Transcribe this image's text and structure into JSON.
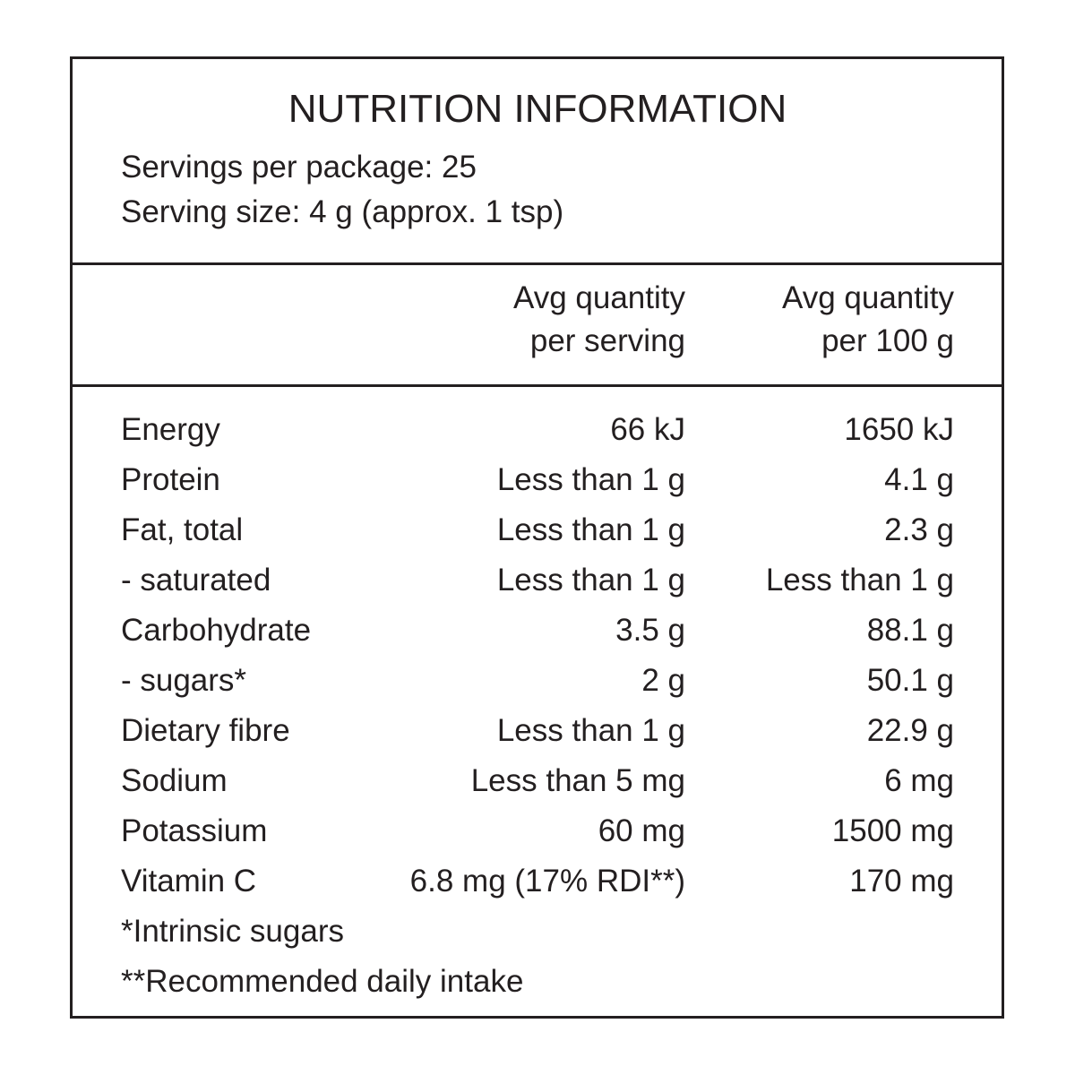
{
  "header": {
    "title": "NUTRITION INFORMATION",
    "servings_per_package": "Servings per package: 25",
    "serving_size": "Serving size: 4 g (approx. 1 tsp)"
  },
  "table": {
    "columns": [
      [
        "Avg quantity",
        "per serving"
      ],
      [
        "Avg quantity",
        "per 100 g"
      ]
    ],
    "rows": [
      [
        "Energy",
        "66 kJ",
        "1650 kJ"
      ],
      [
        "Protein",
        "Less than 1 g",
        "4.1 g"
      ],
      [
        "Fat, total",
        "Less than 1 g",
        "2.3 g"
      ],
      [
        "- saturated",
        "Less than 1 g",
        "Less than 1 g"
      ],
      [
        "Carbohydrate",
        "3.5 g",
        "88.1 g"
      ],
      [
        "- sugars*",
        "2 g",
        "50.1 g"
      ],
      [
        "Dietary fibre",
        "Less than 1 g",
        "22.9 g"
      ],
      [
        "Sodium",
        "Less than 5 mg",
        "6 mg"
      ],
      [
        "Potassium",
        "60 mg",
        "1500 mg"
      ],
      [
        "Vitamin C",
        "6.8 mg (17% RDI**)",
        "170 mg"
      ]
    ]
  },
  "footnotes": [
    "*Intrinsic sugars",
    "**Recommended daily intake"
  ]
}
